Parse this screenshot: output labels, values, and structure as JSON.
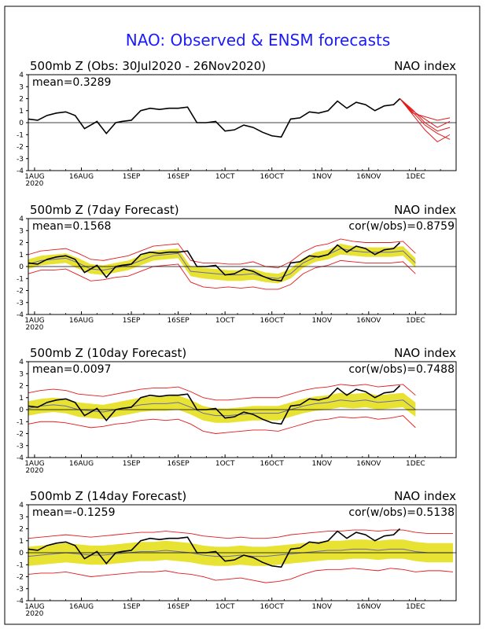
{
  "title": "NAO: Observed & ENSM forecasts",
  "colors": {
    "title": "#1a1aff",
    "observed": "#000000",
    "envelope": "#e31a1c",
    "spread": "#e8e233",
    "mean_line": "#6a6aa8",
    "zero_line": "#000000"
  },
  "x_ticks": [
    {
      "label": "1AUG",
      "sub": "2020",
      "day": 2
    },
    {
      "label": "16AUG",
      "sub": "",
      "day": 17
    },
    {
      "label": "1SEP",
      "sub": "",
      "day": 33
    },
    {
      "label": "16SEP",
      "sub": "",
      "day": 48
    },
    {
      "label": "1OCT",
      "sub": "",
      "day": 63
    },
    {
      "label": "16OCT",
      "sub": "",
      "day": 78
    },
    {
      "label": "1NOV",
      "sub": "",
      "day": 94
    },
    {
      "label": "16NOV",
      "sub": "",
      "day": 109
    },
    {
      "label": "1DEC",
      "sub": "",
      "day": 124
    }
  ],
  "y_ticks": [
    "-4",
    "-3",
    "-2",
    "-1",
    "0",
    "1",
    "2",
    "3",
    "4"
  ],
  "chart_data": [
    {
      "type": "line",
      "title_left": "500mb Z (Obs: 30Jul2020 - 26Nov2020)",
      "title_right": "NAO index",
      "mean_label": "mean=0.3289",
      "cor_label": "",
      "ylim": [
        -4,
        4
      ],
      "xlim_days": [
        0,
        137
      ],
      "observed": {
        "x": [
          0,
          3,
          6,
          9,
          12,
          15,
          18,
          20,
          22,
          25,
          28,
          30,
          33,
          36,
          39,
          42,
          45,
          48,
          51,
          54,
          57,
          60,
          63,
          66,
          69,
          72,
          75,
          78,
          81,
          84,
          87,
          90,
          93,
          96,
          99,
          102,
          105,
          108,
          111,
          114,
          117,
          119
        ],
        "y": [
          0.3,
          0.2,
          0.6,
          0.8,
          0.9,
          0.6,
          -0.5,
          -0.2,
          0.1,
          -0.9,
          0.0,
          0.1,
          0.2,
          1.0,
          1.2,
          1.1,
          1.2,
          1.2,
          1.3,
          0.0,
          0.0,
          0.1,
          -0.7,
          -0.6,
          -0.2,
          -0.4,
          -0.8,
          -1.1,
          -1.2,
          0.3,
          0.4,
          0.9,
          0.8,
          1.0,
          1.8,
          1.2,
          1.7,
          1.5,
          1.0,
          1.4,
          1.5,
          2.0
        ]
      },
      "members": [
        {
          "x": [
            119,
            123,
            127,
            131,
            135
          ],
          "y": [
            2.0,
            0.9,
            -0.2,
            -0.9,
            -1.4
          ]
        },
        {
          "x": [
            119,
            123,
            127,
            131,
            135
          ],
          "y": [
            2.0,
            1.0,
            0.3,
            -0.4,
            0.1
          ]
        },
        {
          "x": [
            119,
            123,
            127,
            131,
            135
          ],
          "y": [
            2.0,
            0.7,
            -0.6,
            -1.6,
            -1.0
          ]
        },
        {
          "x": [
            119,
            123,
            127,
            131,
            135
          ],
          "y": [
            2.0,
            0.8,
            0.5,
            0.2,
            0.4
          ]
        },
        {
          "x": [
            119,
            123,
            127,
            131,
            135
          ],
          "y": [
            2.0,
            1.1,
            0.0,
            -0.7,
            -0.4
          ]
        }
      ]
    },
    {
      "type": "line",
      "title_left": "500mb Z (7day Forecast)",
      "title_right": "NAO index",
      "mean_label": "mean=0.1568",
      "cor_label": "cor(w/obs)=0.8759",
      "ylim": [
        -4,
        4
      ],
      "xlim_days": [
        0,
        137
      ],
      "observed": {
        "x": [
          0,
          3,
          6,
          9,
          12,
          15,
          18,
          20,
          22,
          25,
          28,
          30,
          33,
          36,
          39,
          42,
          45,
          48,
          51,
          54,
          57,
          60,
          63,
          66,
          69,
          72,
          75,
          78,
          81,
          84,
          87,
          90,
          93,
          96,
          99,
          102,
          105,
          108,
          111,
          114,
          117,
          119
        ],
        "y": [
          0.3,
          0.2,
          0.6,
          0.8,
          0.9,
          0.6,
          -0.5,
          -0.2,
          0.1,
          -0.9,
          0.0,
          0.1,
          0.2,
          1.0,
          1.2,
          1.1,
          1.2,
          1.2,
          1.3,
          0.0,
          0.0,
          0.1,
          -0.7,
          -0.6,
          -0.2,
          -0.4,
          -0.8,
          -1.1,
          -1.2,
          0.3,
          0.4,
          0.9,
          0.8,
          1.0,
          1.8,
          1.2,
          1.7,
          1.5,
          1.0,
          1.4,
          1.5,
          2.0
        ]
      },
      "forecast": {
        "x": [
          0,
          4,
          8,
          12,
          16,
          20,
          24,
          28,
          32,
          36,
          40,
          44,
          48,
          52,
          56,
          60,
          64,
          68,
          72,
          76,
          80,
          84,
          88,
          92,
          96,
          100,
          104,
          108,
          112,
          116,
          120,
          124
        ],
        "mean": [
          0.2,
          0.5,
          0.6,
          0.7,
          0.3,
          -0.2,
          -0.3,
          -0.1,
          0.1,
          0.5,
          0.9,
          1.0,
          1.1,
          -0.4,
          -0.5,
          -0.6,
          -0.7,
          -0.7,
          -0.6,
          -0.9,
          -1.0,
          -0.6,
          0.3,
          0.8,
          1.0,
          1.5,
          1.3,
          1.2,
          1.2,
          1.2,
          1.3,
          0.3
        ],
        "spread_lo": [
          -0.2,
          0.1,
          0.2,
          0.3,
          -0.2,
          -0.6,
          -0.7,
          -0.5,
          -0.3,
          0.1,
          0.5,
          0.6,
          0.7,
          -0.8,
          -1.0,
          -1.1,
          -1.2,
          -1.2,
          -1.1,
          -1.3,
          -1.4,
          -1.0,
          -0.1,
          0.4,
          0.6,
          1.0,
          0.9,
          0.8,
          0.8,
          0.8,
          0.9,
          -0.1
        ],
        "spread_hi": [
          0.6,
          0.9,
          1.0,
          1.1,
          0.7,
          0.2,
          0.1,
          0.3,
          0.5,
          0.9,
          1.3,
          1.4,
          1.5,
          0.0,
          -0.1,
          -0.2,
          -0.3,
          -0.3,
          -0.2,
          -0.5,
          -0.6,
          -0.2,
          0.7,
          1.2,
          1.4,
          1.9,
          1.7,
          1.6,
          1.6,
          1.6,
          1.7,
          0.7
        ],
        "env_lo": [
          -0.6,
          -0.3,
          -0.3,
          -0.2,
          -0.7,
          -1.2,
          -1.1,
          -0.9,
          -0.8,
          -0.4,
          0.0,
          0.1,
          0.2,
          -1.3,
          -1.7,
          -1.8,
          -1.7,
          -1.8,
          -1.7,
          -1.9,
          -1.9,
          -1.5,
          -0.6,
          -0.1,
          0.1,
          0.5,
          0.4,
          0.3,
          0.3,
          0.3,
          0.4,
          -0.6
        ],
        "env_hi": [
          1.0,
          1.3,
          1.4,
          1.5,
          1.1,
          0.6,
          0.5,
          0.7,
          0.9,
          1.3,
          1.7,
          1.8,
          1.9,
          0.5,
          0.3,
          0.3,
          0.2,
          0.2,
          0.4,
          0.0,
          -0.1,
          0.4,
          1.2,
          1.7,
          1.9,
          2.3,
          2.1,
          2.0,
          2.0,
          2.0,
          2.1,
          1.1
        ]
      }
    },
    {
      "type": "line",
      "title_left": "500mb Z (10day Forecast)",
      "title_right": "NAO index",
      "mean_label": "mean=0.0097",
      "cor_label": "cor(w/obs)=0.7488",
      "ylim": [
        -4,
        4
      ],
      "xlim_days": [
        0,
        137
      ],
      "observed": {
        "x": [
          0,
          3,
          6,
          9,
          12,
          15,
          18,
          20,
          22,
          25,
          28,
          30,
          33,
          36,
          39,
          42,
          45,
          48,
          51,
          54,
          57,
          60,
          63,
          66,
          69,
          72,
          75,
          78,
          81,
          84,
          87,
          90,
          93,
          96,
          99,
          102,
          105,
          108,
          111,
          114,
          117,
          119
        ],
        "y": [
          0.3,
          0.2,
          0.6,
          0.8,
          0.9,
          0.6,
          -0.5,
          -0.2,
          0.1,
          -0.9,
          0.0,
          0.1,
          0.2,
          1.0,
          1.2,
          1.1,
          1.2,
          1.2,
          1.3,
          0.0,
          0.0,
          0.1,
          -0.7,
          -0.6,
          -0.2,
          -0.4,
          -0.8,
          -1.1,
          -1.2,
          0.3,
          0.4,
          0.9,
          0.8,
          1.0,
          1.8,
          1.2,
          1.7,
          1.5,
          1.0,
          1.4,
          1.5,
          2.0
        ]
      },
      "forecast": {
        "x": [
          0,
          4,
          8,
          12,
          16,
          20,
          24,
          28,
          32,
          36,
          40,
          44,
          48,
          52,
          56,
          60,
          64,
          68,
          72,
          76,
          80,
          84,
          88,
          92,
          96,
          100,
          104,
          108,
          112,
          116,
          120,
          124
        ],
        "mean": [
          0.1,
          0.3,
          0.4,
          0.3,
          0.0,
          -0.1,
          -0.2,
          0.0,
          0.2,
          0.4,
          0.5,
          0.5,
          0.6,
          0.2,
          -0.3,
          -0.5,
          -0.5,
          -0.4,
          -0.3,
          -0.3,
          -0.3,
          0.0,
          0.3,
          0.5,
          0.6,
          0.8,
          0.7,
          0.8,
          0.6,
          0.7,
          0.8,
          0.0
        ],
        "spread_lo": [
          -0.5,
          -0.3,
          -0.2,
          -0.3,
          -0.6,
          -0.7,
          -0.8,
          -0.6,
          -0.4,
          -0.2,
          -0.1,
          -0.1,
          0.0,
          -0.4,
          -0.9,
          -1.1,
          -1.1,
          -1.0,
          -0.9,
          -0.9,
          -0.9,
          -0.6,
          -0.3,
          -0.1,
          0.0,
          0.2,
          0.1,
          0.2,
          0.0,
          0.1,
          0.2,
          -0.6
        ],
        "spread_hi": [
          0.7,
          0.9,
          1.0,
          0.9,
          0.6,
          0.5,
          0.4,
          0.6,
          0.8,
          1.0,
          1.1,
          1.1,
          1.2,
          0.8,
          0.3,
          0.1,
          0.1,
          0.2,
          0.3,
          0.3,
          0.3,
          0.6,
          0.9,
          1.1,
          1.2,
          1.4,
          1.3,
          1.4,
          1.2,
          1.3,
          1.4,
          0.6
        ],
        "env_lo": [
          -1.2,
          -1.0,
          -1.0,
          -1.1,
          -1.3,
          -1.5,
          -1.4,
          -1.2,
          -1.1,
          -0.9,
          -0.8,
          -0.9,
          -0.8,
          -1.2,
          -1.8,
          -2.0,
          -1.9,
          -1.8,
          -1.7,
          -1.7,
          -1.8,
          -1.5,
          -1.2,
          -0.9,
          -0.8,
          -0.6,
          -0.7,
          -0.6,
          -0.8,
          -0.7,
          -0.5,
          -1.5
        ],
        "env_hi": [
          1.4,
          1.6,
          1.7,
          1.6,
          1.3,
          1.2,
          1.1,
          1.3,
          1.5,
          1.7,
          1.8,
          1.8,
          1.9,
          1.5,
          1.0,
          0.8,
          0.8,
          0.9,
          1.0,
          1.0,
          1.0,
          1.3,
          1.6,
          1.8,
          1.9,
          2.1,
          2.0,
          2.1,
          1.9,
          2.0,
          2.1,
          1.2
        ]
      }
    },
    {
      "type": "line",
      "title_left": "500mb Z (14day Forecast)",
      "title_right": "NAO index",
      "mean_label": "mean=-0.1259",
      "cor_label": "cor(w/obs)=0.5138",
      "ylim": [
        -4,
        4
      ],
      "xlim_days": [
        0,
        137
      ],
      "observed": {
        "x": [
          0,
          3,
          6,
          9,
          12,
          15,
          18,
          20,
          22,
          25,
          28,
          30,
          33,
          36,
          39,
          42,
          45,
          48,
          51,
          54,
          57,
          60,
          63,
          66,
          69,
          72,
          75,
          78,
          81,
          84,
          87,
          90,
          93,
          96,
          99,
          102,
          105,
          108,
          111,
          114,
          117,
          119
        ],
        "y": [
          0.3,
          0.2,
          0.6,
          0.8,
          0.9,
          0.6,
          -0.5,
          -0.2,
          0.1,
          -0.9,
          0.0,
          0.1,
          0.2,
          1.0,
          1.2,
          1.1,
          1.2,
          1.2,
          1.3,
          0.0,
          0.0,
          0.1,
          -0.7,
          -0.6,
          -0.2,
          -0.4,
          -0.8,
          -1.1,
          -1.2,
          0.3,
          0.4,
          0.9,
          0.8,
          1.0,
          1.8,
          1.2,
          1.7,
          1.5,
          1.0,
          1.4,
          1.5,
          2.0
        ]
      },
      "forecast": {
        "x": [
          0,
          4,
          8,
          12,
          16,
          20,
          24,
          28,
          32,
          36,
          40,
          44,
          48,
          52,
          56,
          60,
          64,
          68,
          72,
          76,
          80,
          84,
          88,
          92,
          96,
          100,
          104,
          108,
          112,
          116,
          120,
          124,
          128,
          132,
          136
        ],
        "mean": [
          -0.3,
          -0.2,
          -0.1,
          0.0,
          -0.1,
          -0.2,
          -0.2,
          -0.1,
          0.0,
          0.1,
          0.1,
          0.2,
          0.1,
          0.0,
          -0.2,
          -0.3,
          -0.3,
          -0.2,
          -0.3,
          -0.3,
          -0.2,
          -0.1,
          0.0,
          0.1,
          0.2,
          0.2,
          0.3,
          0.3,
          0.2,
          0.3,
          0.3,
          0.1,
          0.0,
          0.0,
          0.0
        ],
        "spread_lo": [
          -1.1,
          -1.0,
          -0.9,
          -0.8,
          -0.9,
          -1.0,
          -1.0,
          -0.9,
          -0.8,
          -0.7,
          -0.7,
          -0.6,
          -0.7,
          -0.8,
          -1.0,
          -1.1,
          -1.1,
          -1.0,
          -1.1,
          -1.1,
          -1.0,
          -0.9,
          -0.8,
          -0.7,
          -0.6,
          -0.6,
          -0.5,
          -0.5,
          -0.6,
          -0.5,
          -0.5,
          -0.7,
          -0.8,
          -0.8,
          -0.8
        ],
        "spread_hi": [
          0.5,
          0.6,
          0.7,
          0.8,
          0.7,
          0.6,
          0.6,
          0.7,
          0.8,
          0.9,
          0.9,
          1.0,
          0.9,
          0.8,
          0.6,
          0.5,
          0.5,
          0.6,
          0.5,
          0.5,
          0.6,
          0.7,
          0.8,
          0.9,
          1.0,
          1.0,
          1.1,
          1.1,
          1.0,
          1.1,
          1.1,
          0.9,
          0.8,
          0.8,
          0.8
        ],
        "env_lo": [
          -1.8,
          -1.7,
          -1.7,
          -1.6,
          -1.8,
          -2.0,
          -1.9,
          -1.8,
          -1.7,
          -1.6,
          -1.6,
          -1.5,
          -1.7,
          -1.8,
          -2.0,
          -2.3,
          -2.2,
          -2.1,
          -2.3,
          -2.5,
          -2.4,
          -2.2,
          -1.8,
          -1.5,
          -1.4,
          -1.4,
          -1.3,
          -1.4,
          -1.5,
          -1.3,
          -1.4,
          -1.6,
          -1.5,
          -1.5,
          -1.6
        ],
        "env_hi": [
          1.2,
          1.3,
          1.4,
          1.5,
          1.4,
          1.3,
          1.4,
          1.5,
          1.6,
          1.7,
          1.7,
          1.8,
          1.7,
          1.6,
          1.4,
          1.3,
          1.2,
          1.3,
          1.2,
          1.2,
          1.3,
          1.5,
          1.6,
          1.7,
          1.8,
          1.8,
          1.9,
          1.9,
          1.8,
          1.9,
          1.9,
          1.7,
          1.6,
          1.6,
          1.6
        ]
      }
    }
  ]
}
